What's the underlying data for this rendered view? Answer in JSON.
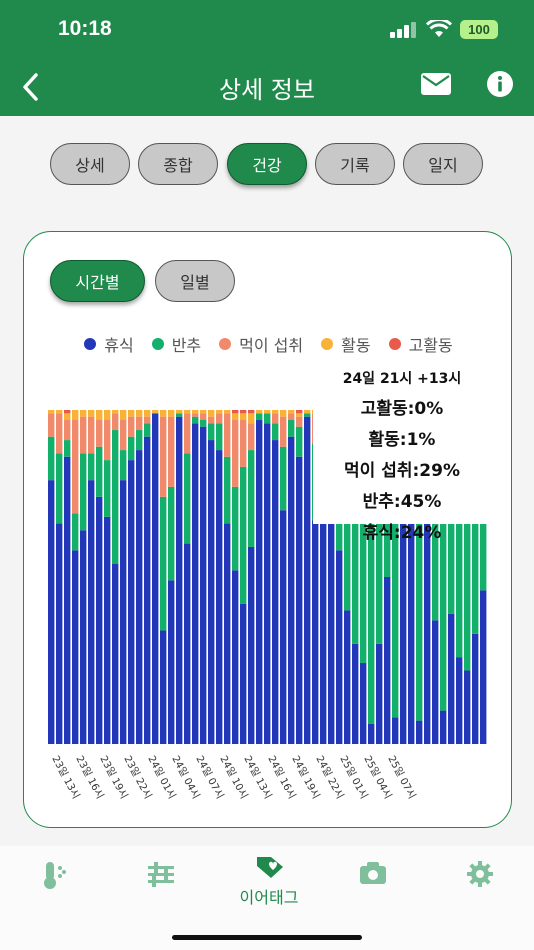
{
  "status_bar": {
    "time": "10:18",
    "battery": "100"
  },
  "header": {
    "title": "상세 정보"
  },
  "tabs": [
    "상세",
    "종합",
    "건강",
    "기록",
    "일지"
  ],
  "active_tab": 2,
  "subtabs": [
    "시간별",
    "일별"
  ],
  "active_subtab": 0,
  "colors": {
    "brand": "#1f8a4c",
    "rest": "#2338b8",
    "rumination": "#12b06a",
    "eating": "#f08a6a",
    "activity": "#f8b238",
    "high_activity": "#e85a4a"
  },
  "legend": [
    {
      "label": "휴식",
      "color": "#2338b8"
    },
    {
      "label": "반추",
      "color": "#12b06a"
    },
    {
      "label": "먹이 섭취",
      "color": "#f08a6a"
    },
    {
      "label": "활동",
      "color": "#f8b238"
    },
    {
      "label": "고활동",
      "color": "#e85a4a"
    }
  ],
  "tooltip": {
    "title": "24일 21시 +13시",
    "lines": [
      "고활동:0%",
      "활동:1%",
      "먹이 섭취:29%",
      "반추:45%",
      "휴식:24%"
    ]
  },
  "chart_data": {
    "type": "bar",
    "stacked": true,
    "series_order": [
      "휴식",
      "반추",
      "먹이 섭취",
      "활동",
      "고활동"
    ],
    "x_tick_labels": [
      "23일 13시",
      "23일 16시",
      "23일 19시",
      "23일 22시",
      "24일 01시",
      "24일 04시",
      "24일 07시",
      "24일 10시",
      "24일 13시",
      "24일 16시",
      "24일 19시",
      "24일 22시",
      "25일 01시",
      "25일 04시",
      "25일 07시"
    ],
    "bars": [
      [
        79,
        13,
        7,
        1,
        0
      ],
      [
        66,
        21,
        12,
        1,
        0
      ],
      [
        86,
        5,
        6,
        2,
        1
      ],
      [
        58,
        11,
        28,
        3,
        0
      ],
      [
        64,
        23,
        11,
        2,
        0
      ],
      [
        79,
        8,
        11,
        2,
        0
      ],
      [
        74,
        15,
        8,
        3,
        0
      ],
      [
        68,
        17,
        12,
        3,
        0
      ],
      [
        54,
        40,
        5,
        1,
        0
      ],
      [
        79,
        9,
        9,
        3,
        0
      ],
      [
        85,
        7,
        6,
        2,
        0
      ],
      [
        88,
        6,
        4,
        2,
        0
      ],
      [
        92,
        4,
        2,
        2,
        0
      ],
      [
        99,
        0,
        0,
        1,
        0
      ],
      [
        34,
        40,
        24,
        2,
        0
      ],
      [
        49,
        28,
        21,
        2,
        0
      ],
      [
        98,
        1,
        0,
        1,
        0
      ],
      [
        60,
        27,
        12,
        1,
        0
      ],
      [
        96,
        2,
        1,
        1,
        0
      ],
      [
        95,
        2,
        2,
        1,
        0
      ],
      [
        91,
        5,
        2,
        2,
        0
      ],
      [
        88,
        8,
        3,
        1,
        0
      ],
      [
        66,
        20,
        13,
        1,
        0
      ],
      [
        52,
        25,
        20,
        2,
        1
      ],
      [
        42,
        41,
        14,
        2,
        1
      ],
      [
        59,
        29,
        8,
        3,
        1
      ],
      [
        97,
        2,
        0,
        1,
        0
      ],
      [
        96,
        3,
        0,
        1,
        0
      ],
      [
        91,
        5,
        3,
        1,
        0
      ],
      [
        70,
        19,
        9,
        2,
        0
      ],
      [
        92,
        5,
        2,
        1,
        0
      ],
      [
        86,
        9,
        3,
        1,
        1
      ],
      [
        98,
        1,
        0,
        1,
        0
      ],
      [
        67,
        23,
        9,
        1,
        0
      ],
      [
        97,
        2,
        0,
        1,
        0
      ],
      [
        92,
        5,
        2,
        1,
        0
      ],
      [
        58,
        39,
        2,
        1,
        0
      ],
      [
        40,
        56,
        2,
        1,
        1
      ],
      [
        30,
        65,
        4,
        1,
        0
      ],
      [
        24,
        45,
        29,
        1,
        0
      ],
      [
        6,
        93,
        0,
        1,
        0
      ],
      [
        30,
        63,
        6,
        1,
        0
      ],
      [
        50,
        46,
        3,
        1,
        0
      ],
      [
        8,
        91,
        0,
        1,
        0
      ],
      [
        96,
        3,
        0,
        1,
        0
      ],
      [
        67,
        30,
        2,
        1,
        0
      ],
      [
        7,
        92,
        0,
        1,
        0
      ],
      [
        76,
        20,
        3,
        1,
        0
      ],
      [
        37,
        58,
        4,
        1,
        0
      ],
      [
        10,
        87,
        2,
        1,
        0
      ],
      [
        39,
        58,
        2,
        1,
        0
      ],
      [
        26,
        70,
        3,
        1,
        0
      ],
      [
        22,
        60,
        17,
        1,
        0
      ],
      [
        33,
        65,
        1,
        1,
        0
      ],
      [
        46,
        52,
        1,
        1,
        0
      ]
    ]
  }
}
